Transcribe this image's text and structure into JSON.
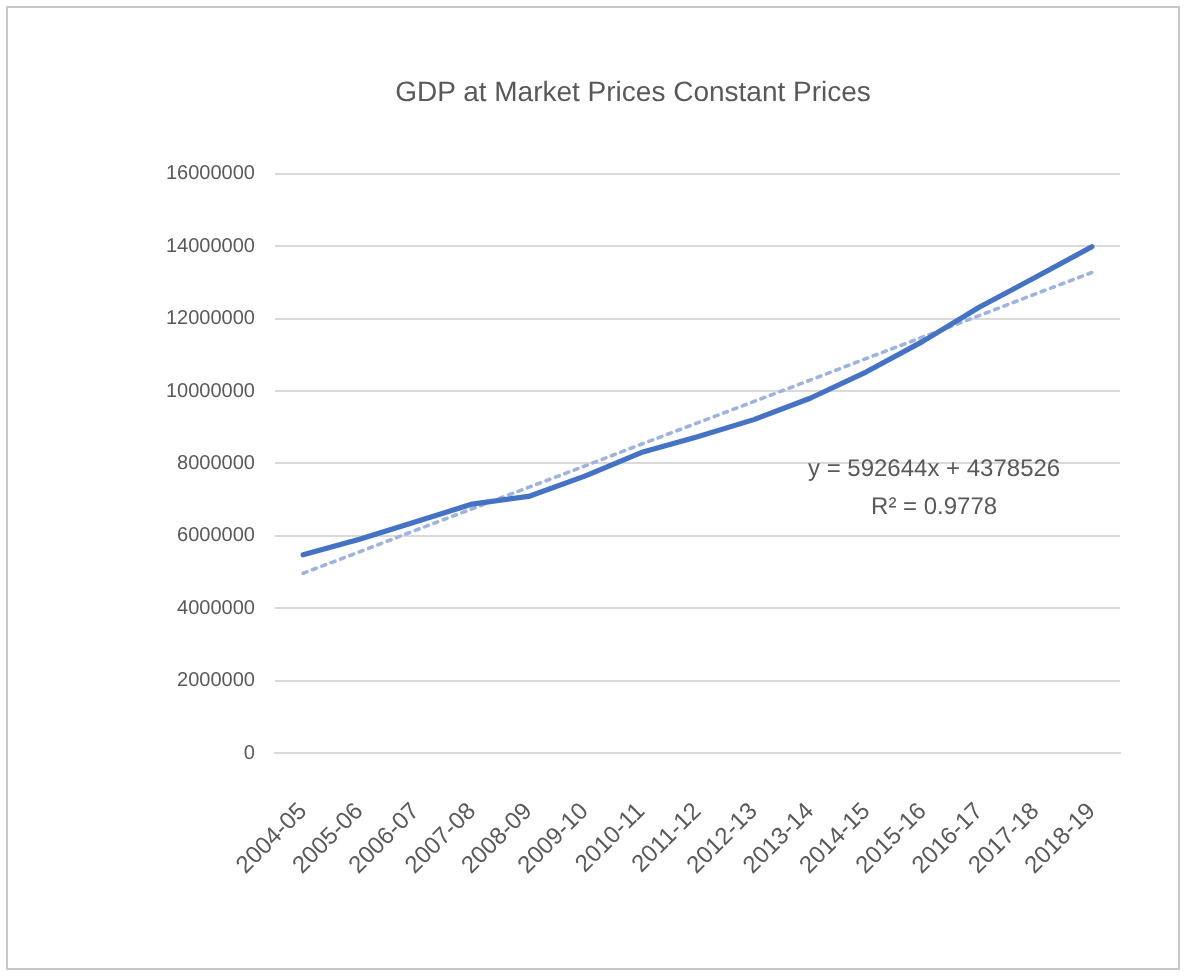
{
  "chart_data": {
    "type": "line",
    "title": "GDP at Market Prices Constant Prices",
    "categories": [
      "2004-05",
      "2005-06",
      "2006-07",
      "2007-08",
      "2008-09",
      "2009-10",
      "2010-11",
      "2011-12",
      "2012-13",
      "2013-14",
      "2014-15",
      "2015-16",
      "2016-17",
      "2017-18",
      "2018-19"
    ],
    "series": [
      {
        "color": "#4472c4",
        "values": [
          5480000,
          5910000,
          6390000,
          6880000,
          7090000,
          7650000,
          8300000,
          8740000,
          9210000,
          9800000,
          10530000,
          11370000,
          12310000,
          13140000,
          13980000
        ]
      },
      {
        "type": "line",
        "color": "#9db3e0",
        "line_style": "dotted",
        "values": [
          4970000,
          5560000,
          6160000,
          6750000,
          7340000,
          7930000,
          8530000,
          9120000,
          9710000,
          10300000,
          10900000,
          11490000,
          12080000,
          12680000,
          13270000
        ]
      }
    ],
    "ylim": [
      0,
      16000000
    ],
    "yticks": [
      0,
      2000000,
      4000000,
      6000000,
      8000000,
      10000000,
      12000000,
      14000000,
      16000000
    ],
    "grid": "y",
    "legend": false,
    "marker": "none",
    "annotations": [
      "y = 592644x + 4378526",
      "R² = 0.9778"
    ]
  }
}
